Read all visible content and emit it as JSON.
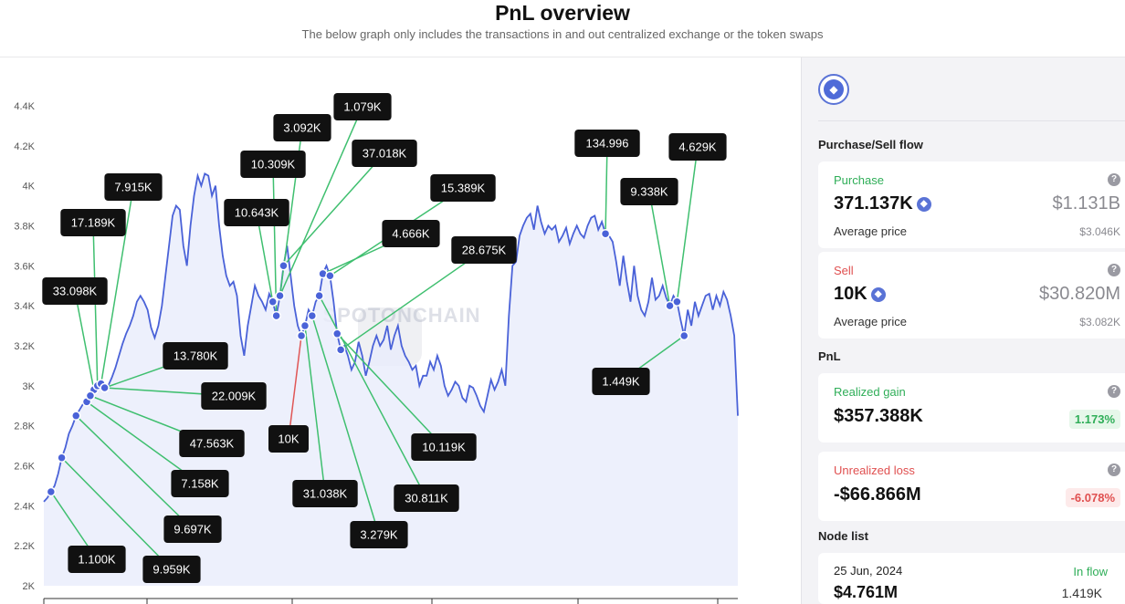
{
  "header": {
    "title": "PnL overview",
    "subtitle": "The below graph only includes the transactions in and out centralized exchange or the token swaps"
  },
  "chart_data": {
    "type": "line",
    "ylim": [
      2000,
      4500
    ],
    "y_ticks": [
      "2K",
      "2.2K",
      "2.4K",
      "2.6K",
      "2.8K",
      "3K",
      "3.2K",
      "3.4K",
      "3.6K",
      "3.8K",
      "4K",
      "4.2K",
      "4.4K"
    ],
    "y_tick_values": [
      2000,
      2200,
      2400,
      2600,
      2800,
      3000,
      3200,
      3400,
      3600,
      3800,
      4000,
      4200,
      4400
    ],
    "line_color": "#4a62d8",
    "fill_color": "#e9ecfb",
    "buy_color": "#3fbf6f",
    "sell_color": "#e05656",
    "series": [
      {
        "values": [
          2420,
          2440,
          2470,
          2500,
          2560,
          2640,
          2690,
          2760,
          2800,
          2850,
          2880,
          2910,
          2920,
          2950,
          2980,
          3000,
          3010,
          2990,
          3000,
          3040,
          3090,
          3150,
          3210,
          3260,
          3300,
          3350,
          3420,
          3450,
          3420,
          3380,
          3290,
          3240,
          3300,
          3400,
          3550,
          3700,
          3850,
          3900,
          3880,
          3700,
          3600,
          3800,
          3950,
          4050,
          4000,
          4060,
          4050,
          3950,
          4000,
          3800,
          3650,
          3550,
          3500,
          3520,
          3450,
          3250,
          3150,
          3300,
          3400,
          3500,
          3450,
          3420,
          3380,
          3460,
          3420,
          3350,
          3450,
          3600,
          3700,
          3550,
          3400,
          3300,
          3250,
          3300,
          3380,
          3350,
          3420,
          3450,
          3560,
          3600,
          3550,
          3420,
          3260,
          3180,
          3200,
          3150,
          3080,
          3120,
          3220,
          3150,
          3050,
          3120,
          3200,
          3250,
          3200,
          3230,
          3300,
          3180,
          3250,
          3300,
          3200,
          3150,
          3120,
          3080,
          3100,
          3000,
          3050,
          3050,
          3120,
          3080,
          3150,
          3100,
          3000,
          2950,
          2980,
          3020,
          3000,
          2940,
          2920,
          3000,
          2990,
          2950,
          2900,
          2870,
          2950,
          3030,
          2980,
          3020,
          3080,
          3000,
          3350,
          3600,
          3620,
          3750,
          3800,
          3840,
          3860,
          3780,
          3900,
          3820,
          3760,
          3800,
          3780,
          3800,
          3720,
          3750,
          3790,
          3710,
          3760,
          3800,
          3760,
          3740,
          3800,
          3840,
          3850,
          3780,
          3820,
          3760,
          3750,
          3720,
          3620,
          3500,
          3650,
          3520,
          3420,
          3600,
          3450,
          3380,
          3350,
          3420,
          3540,
          3430,
          3450,
          3500,
          3440,
          3400,
          3450,
          3420,
          3330,
          3250,
          3380,
          3300,
          3420,
          3350,
          3400,
          3450,
          3460,
          3380,
          3450,
          3400,
          3470,
          3430,
          3350,
          3250,
          2850
        ]
      }
    ],
    "markers": [
      {
        "label": "1.100K",
        "type": "buy",
        "i": 2
      },
      {
        "label": "9.959K",
        "type": "buy",
        "i": 5
      },
      {
        "label": "33.098K",
        "type": "buy",
        "i": 14
      },
      {
        "label": "17.189K",
        "type": "buy",
        "i": 15
      },
      {
        "label": "9.697K",
        "type": "buy",
        "i": 9
      },
      {
        "label": "7.158K",
        "type": "buy",
        "i": 12
      },
      {
        "label": "47.563K",
        "type": "buy",
        "i": 13
      },
      {
        "label": "7.915K",
        "type": "buy",
        "i": 16
      },
      {
        "label": "22.009K",
        "type": "buy",
        "i": 17
      },
      {
        "label": "13.780K",
        "type": "buy",
        "i": 17
      },
      {
        "label": "10.643K",
        "type": "buy",
        "i": 64
      },
      {
        "label": "10.309K",
        "type": "buy",
        "i": 65
      },
      {
        "label": "3.092K",
        "type": "buy",
        "i": 66
      },
      {
        "label": "1.079K",
        "type": "buy",
        "i": 66
      },
      {
        "label": "37.018K",
        "type": "buy",
        "i": 67
      },
      {
        "label": "10K",
        "type": "sell",
        "i": 72
      },
      {
        "label": "31.038K",
        "type": "buy",
        "i": 73
      },
      {
        "label": "3.279K",
        "type": "buy",
        "i": 75
      },
      {
        "label": "4.666K",
        "type": "buy",
        "i": 78
      },
      {
        "label": "15.389K",
        "type": "buy",
        "i": 80
      },
      {
        "label": "30.811K",
        "type": "buy",
        "i": 77
      },
      {
        "label": "10.119K",
        "type": "buy",
        "i": 82
      },
      {
        "label": "28.675K",
        "type": "buy",
        "i": 83
      },
      {
        "label": "134.996",
        "type": "buy",
        "i": 157
      },
      {
        "label": "9.338K",
        "type": "buy",
        "i": 175
      },
      {
        "label": "4.629K",
        "type": "buy",
        "i": 177
      },
      {
        "label": "1.449K",
        "type": "buy",
        "i": 179
      }
    ]
  },
  "panel": {
    "eth_icon": "ethereum-icon",
    "flow_title": "Purchase/Sell flow",
    "purchase": {
      "label": "Purchase",
      "amount": "371.137K",
      "value": "$1.131B",
      "avg_label": "Average price",
      "avg_value": "$3.046K",
      "label_color": "#2fae58"
    },
    "sell": {
      "label": "Sell",
      "amount": "10K",
      "value": "$30.820M",
      "avg_label": "Average price",
      "avg_value": "$3.082K",
      "label_color": "#e05050"
    },
    "pnl_title": "PnL",
    "realized": {
      "label": "Realized gain",
      "value": "$357.388K",
      "pct": "1.173%"
    },
    "unrealized": {
      "label": "Unrealized loss",
      "value": "-$66.866M",
      "pct": "-6.078%"
    },
    "node_title": "Node list",
    "node": {
      "date": "25 Jun, 2024",
      "flow": "In flow",
      "value": "$4.761M",
      "amount": "1.419K"
    }
  }
}
